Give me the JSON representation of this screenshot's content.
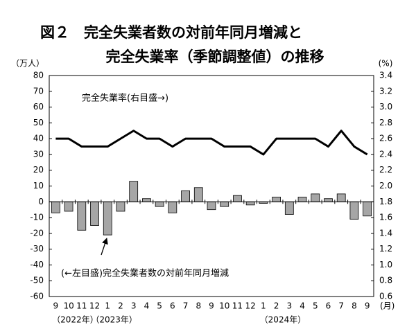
{
  "chart_data": {
    "type": "bar-line",
    "title_lines": [
      "図２　完全失業者数の対前年同月増減と",
      "完全失業率（季節調整値）の推移"
    ],
    "y_label": "（万人）",
    "y2_label": "(%)",
    "x_unit": "(月)",
    "categories": [
      "9",
      "10",
      "11",
      "12",
      "1",
      "2",
      "3",
      "4",
      "5",
      "6",
      "7",
      "8",
      "9",
      "10",
      "11",
      "12",
      "1",
      "2",
      "3",
      "4",
      "5",
      "6",
      "7",
      "8",
      "9"
    ],
    "x_groups": [
      {
        "label": "（2022年）",
        "span": 4
      },
      {
        "label": "（2023年）",
        "span": 12
      },
      {
        "label": "（2024年）",
        "span": 9
      }
    ],
    "ylim": [
      -60,
      80
    ],
    "yticks": [
      80,
      70,
      60,
      50,
      40,
      30,
      20,
      10,
      0,
      -10,
      -20,
      -30,
      -40,
      -50,
      -60
    ],
    "y2lim": [
      0.6,
      3.4
    ],
    "y2ticks": [
      3.4,
      3.2,
      {
        "value": 3,
        "label": "3.0"
      },
      2.8,
      2.6,
      2.4,
      2.2,
      {
        "value": 2,
        "label": "2.0"
      },
      1.8,
      1.6,
      1.4,
      1.2,
      {
        "value": 1,
        "label": "1.0"
      },
      0.8,
      0.6
    ],
    "series": [
      {
        "name": "(←左目盛)完全失業者数の対前年同月増減",
        "type": "bar",
        "color": "#a6a6a6",
        "values": [
          -7,
          -6,
          -18,
          -15,
          -21,
          -6,
          13,
          2,
          -3,
          -7,
          7,
          9,
          -5,
          -3,
          4,
          -2,
          -1,
          3,
          -8,
          3,
          5,
          2,
          5,
          -11,
          -9
        ]
      },
      {
        "name": "完全失業率(右目盛→)",
        "type": "line",
        "axis": "y2",
        "color": "#000000",
        "values": [
          2.6,
          2.6,
          2.5,
          2.5,
          2.5,
          2.6,
          2.7,
          2.6,
          2.6,
          2.5,
          2.6,
          2.6,
          2.6,
          2.5,
          2.5,
          2.5,
          2.4,
          2.6,
          2.6,
          2.6,
          2.6,
          2.5,
          2.7,
          2.5,
          2.4
        ]
      }
    ]
  }
}
